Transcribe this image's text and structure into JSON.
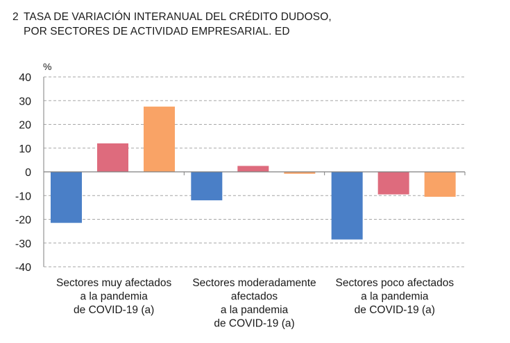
{
  "title": {
    "number": "2",
    "line1": "TASA DE VARIACIÓN INTERANUAL DEL CRÉDITO DUDOSO,",
    "line2": "POR SECTORES DE ACTIVIDAD EMPRESARIAL. ED"
  },
  "chart_data": {
    "type": "bar",
    "ylabel": "%",
    "ylim": [
      -40,
      40
    ],
    "yticks": [
      40,
      30,
      20,
      10,
      0,
      -10,
      -20,
      -30,
      -40
    ],
    "grid": true,
    "categories": [
      [
        "Sectores muy afectados",
        "a la pandemia",
        "de COVID-19 (a)"
      ],
      [
        "Sectores moderadamente",
        "afectados",
        "a la pandemia",
        "de COVID-19 (a)"
      ],
      [
        "Sectores poco afectados",
        "a la pandemia",
        "de COVID-19 (a)"
      ]
    ],
    "series": [
      {
        "color": "#4a7fc7",
        "values": [
          -21.5,
          -12,
          -28.5
        ]
      },
      {
        "color": "#de6b7d",
        "values": [
          12,
          2.5,
          -9.5
        ]
      },
      {
        "color": "#f9a366",
        "values": [
          27.5,
          -0.8,
          -10.5
        ]
      }
    ]
  }
}
